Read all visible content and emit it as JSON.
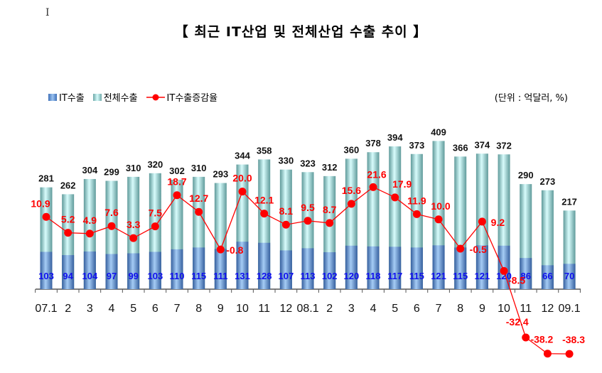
{
  "chart_data": {
    "type": "bar",
    "title": "【 최근 IT산업 및 전체산업 수출 추이 】",
    "unit": "(단위 : 억달러, %)",
    "categories": [
      "07.1",
      "2",
      "3",
      "4",
      "5",
      "6",
      "7",
      "8",
      "9",
      "10",
      "11",
      "12",
      "08.1",
      "2",
      "3",
      "4",
      "5",
      "6",
      "7",
      "8",
      "9",
      "10",
      "11",
      "12",
      "09.1"
    ],
    "series": [
      {
        "name": "IT수출",
        "type": "bar",
        "color": "#5b8fd6",
        "values": [
          103,
          94,
          104,
          97,
          99,
          103,
          110,
          115,
          111,
          131,
          128,
          107,
          113,
          102,
          120,
          118,
          117,
          115,
          121,
          115,
          121,
          120,
          86,
          66,
          70
        ]
      },
      {
        "name": "전체수출",
        "type": "bar",
        "color": "#a8e0e0",
        "values": [
          281,
          262,
          304,
          299,
          310,
          320,
          302,
          310,
          293,
          344,
          358,
          330,
          323,
          312,
          360,
          378,
          394,
          373,
          409,
          366,
          374,
          372,
          290,
          273,
          217
        ]
      },
      {
        "name": "IT수출증감율",
        "type": "line",
        "color": "#ff0000",
        "values": [
          10.9,
          5.2,
          4.9,
          7.6,
          3.3,
          7.5,
          18.7,
          12.7,
          -0.8,
          20.0,
          12.1,
          8.1,
          9.5,
          8.7,
          15.6,
          21.6,
          17.9,
          11.9,
          10.0,
          -0.5,
          9.2,
          -8.5,
          -32.4,
          -38.2,
          -38.3
        ]
      }
    ],
    "legend_position": "top-left",
    "grid": false
  },
  "cursor_glyph": "I"
}
